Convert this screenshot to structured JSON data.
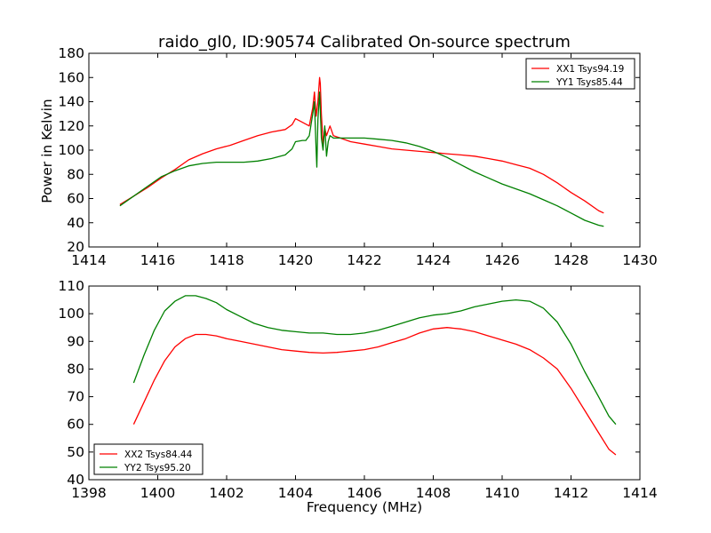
{
  "figure": {
    "title": "raido_gl0, ID:90574 Calibrated On-source spectrum",
    "xlabel": "Frequency (MHz)",
    "ylabel": "Power in Kelvin"
  },
  "chart_data": [
    {
      "type": "line",
      "title": "raido_gl0, ID:90574 Calibrated On-source spectrum",
      "xlabel": "",
      "ylabel": "Power in Kelvin",
      "xlim": [
        1414,
        1430
      ],
      "ylim": [
        20,
        180
      ],
      "xticks": [
        1414,
        1416,
        1418,
        1420,
        1422,
        1424,
        1426,
        1428,
        1430
      ],
      "yticks": [
        20,
        40,
        60,
        80,
        100,
        120,
        140,
        160,
        180
      ],
      "grid": false,
      "legend": "top-right",
      "series": [
        {
          "name": "XX1 Tsys94.19",
          "color": "#ff0000",
          "x": [
            1414.9,
            1415.3,
            1415.7,
            1416.1,
            1416.5,
            1416.9,
            1417.3,
            1417.7,
            1418.1,
            1418.5,
            1418.9,
            1419.3,
            1419.7,
            1419.9,
            1420.0,
            1420.2,
            1420.4,
            1420.5,
            1420.55,
            1420.6,
            1420.65,
            1420.7,
            1420.72,
            1420.75,
            1420.8,
            1420.85,
            1420.9,
            1420.95,
            1421.0,
            1421.1,
            1421.3,
            1421.6,
            1422.0,
            1422.4,
            1422.8,
            1423.2,
            1423.6,
            1424.0,
            1424.4,
            1424.8,
            1425.2,
            1425.6,
            1426.0,
            1426.4,
            1426.8,
            1427.2,
            1427.6,
            1428.0,
            1428.4,
            1428.8,
            1428.95
          ],
          "values": [
            55,
            62,
            69,
            77,
            84,
            92,
            97,
            101,
            104,
            108,
            112,
            115,
            117,
            121,
            126,
            123,
            120,
            135,
            148,
            128,
            140,
            160,
            155,
            130,
            105,
            118,
            112,
            116,
            120,
            112,
            110,
            107,
            105,
            103,
            101,
            100,
            99,
            98,
            97,
            96,
            95,
            93,
            91,
            88,
            85,
            80,
            73,
            65,
            58,
            50,
            48
          ]
        },
        {
          "name": "YY1 Tsys85.44",
          "color": "#008000",
          "x": [
            1414.9,
            1415.3,
            1415.7,
            1416.1,
            1416.5,
            1416.9,
            1417.3,
            1417.7,
            1418.1,
            1418.5,
            1418.9,
            1419.3,
            1419.7,
            1419.9,
            1420.0,
            1420.2,
            1420.3,
            1420.4,
            1420.5,
            1420.55,
            1420.6,
            1420.62,
            1420.65,
            1420.7,
            1420.75,
            1420.8,
            1420.85,
            1420.9,
            1420.95,
            1421.0,
            1421.1,
            1421.3,
            1421.6,
            1422.0,
            1422.4,
            1422.8,
            1423.2,
            1423.6,
            1424.0,
            1424.4,
            1424.8,
            1425.2,
            1425.6,
            1426.0,
            1426.4,
            1426.8,
            1427.2,
            1427.6,
            1428.0,
            1428.4,
            1428.8,
            1428.95
          ],
          "values": [
            54,
            62,
            70,
            78,
            83,
            87,
            89,
            90,
            90,
            90,
            91,
            93,
            96,
            101,
            107,
            108,
            108,
            112,
            130,
            140,
            100,
            86,
            125,
            148,
            110,
            100,
            120,
            95,
            107,
            112,
            110,
            110,
            110,
            110,
            109,
            108,
            106,
            103,
            99,
            94,
            88,
            82,
            77,
            72,
            68,
            64,
            59,
            54,
            48,
            42,
            38,
            37
          ]
        }
      ]
    },
    {
      "type": "line",
      "title": "",
      "xlabel": "Frequency (MHz)",
      "ylabel": "",
      "xlim": [
        1398,
        1414
      ],
      "ylim": [
        40,
        110
      ],
      "xticks": [
        1398,
        1400,
        1402,
        1404,
        1406,
        1408,
        1410,
        1412,
        1414
      ],
      "yticks": [
        40,
        50,
        60,
        70,
        80,
        90,
        100,
        110
      ],
      "grid": false,
      "legend": "bottom-left",
      "series": [
        {
          "name": "XX2 Tsys84.44",
          "color": "#ff0000",
          "x": [
            1399.3,
            1399.6,
            1399.9,
            1400.2,
            1400.5,
            1400.8,
            1401.1,
            1401.4,
            1401.7,
            1402.0,
            1402.4,
            1402.8,
            1403.2,
            1403.6,
            1404.0,
            1404.4,
            1404.8,
            1405.2,
            1405.6,
            1406.0,
            1406.4,
            1406.8,
            1407.2,
            1407.6,
            1408.0,
            1408.4,
            1408.8,
            1409.2,
            1409.6,
            1410.0,
            1410.4,
            1410.8,
            1411.2,
            1411.6,
            1412.0,
            1412.4,
            1412.8,
            1413.1,
            1413.3
          ],
          "values": [
            60,
            68,
            76,
            83,
            88,
            91,
            92.5,
            92.5,
            92,
            91,
            90,
            89,
            88,
            87,
            86.5,
            86,
            85.8,
            86,
            86.5,
            87,
            88,
            89.5,
            91,
            93,
            94.5,
            95,
            94.5,
            93.5,
            92,
            90.5,
            89,
            87,
            84,
            80,
            73,
            65,
            57,
            51,
            49
          ]
        },
        {
          "name": "YY2 Tsys95.20",
          "color": "#008000",
          "x": [
            1399.3,
            1399.6,
            1399.9,
            1400.2,
            1400.5,
            1400.8,
            1401.1,
            1401.4,
            1401.7,
            1402.0,
            1402.4,
            1402.8,
            1403.2,
            1403.6,
            1404.0,
            1404.4,
            1404.8,
            1405.2,
            1405.6,
            1406.0,
            1406.4,
            1406.8,
            1407.2,
            1407.6,
            1408.0,
            1408.4,
            1408.8,
            1409.2,
            1409.6,
            1410.0,
            1410.4,
            1410.8,
            1411.2,
            1411.6,
            1412.0,
            1412.4,
            1412.8,
            1413.1,
            1413.3
          ],
          "values": [
            75,
            85,
            94,
            101,
            104.5,
            106.5,
            106.5,
            105.5,
            104,
            101.5,
            99,
            96.5,
            95,
            94,
            93.5,
            93,
            93,
            92.5,
            92.5,
            93,
            94,
            95.5,
            97,
            98.5,
            99.5,
            100,
            101,
            102.5,
            103.5,
            104.5,
            105,
            104.5,
            102,
            97,
            89,
            79,
            70,
            63,
            60
          ]
        }
      ]
    }
  ]
}
